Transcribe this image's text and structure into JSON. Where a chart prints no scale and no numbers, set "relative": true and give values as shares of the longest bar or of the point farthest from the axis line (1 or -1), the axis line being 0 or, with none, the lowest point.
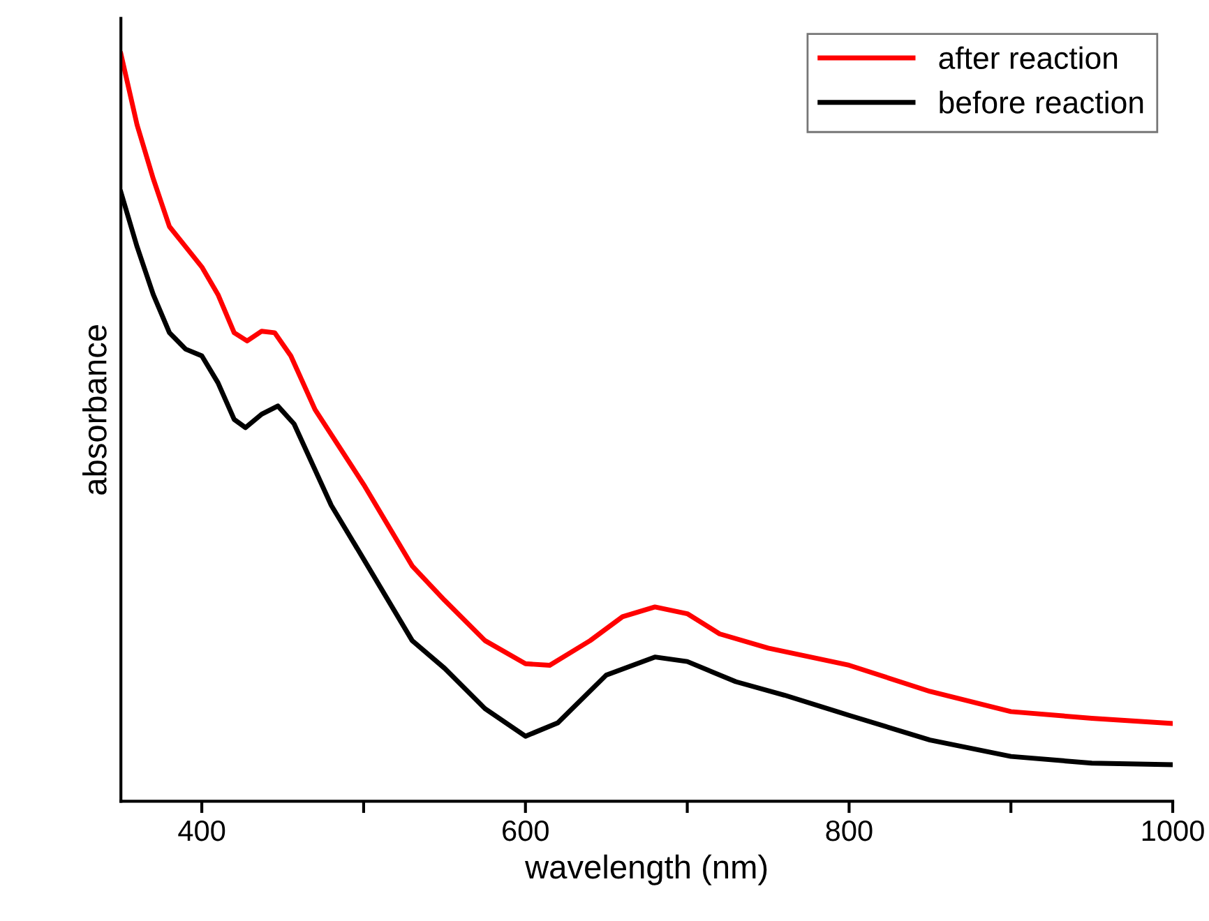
{
  "chart_data": {
    "type": "line",
    "xlabel": "wavelength (nm)",
    "ylabel": "absorbance",
    "relative": true,
    "legend": "top right",
    "grid": false,
    "marker": "none",
    "line_style": "solid",
    "xlim": [
      350,
      1000
    ],
    "xticks": [
      400,
      {
        "value": 500,
        "label": null
      },
      600,
      {
        "value": 700,
        "label": null
      },
      800,
      {
        "value": 900,
        "label": null
      },
      1000
    ],
    "series": [
      {
        "name": "after reaction",
        "color": "#ff0000",
        "x": [
          350,
          360,
          370,
          380,
          390,
          400,
          410,
          420,
          428,
          437,
          445,
          455,
          470,
          500,
          530,
          550,
          575,
          600,
          615,
          640,
          660,
          680,
          700,
          720,
          750,
          800,
          850,
          900,
          950,
          1000
        ],
        "values": [
          1.0,
          0.905,
          0.833,
          0.769,
          0.742,
          0.715,
          0.678,
          0.627,
          0.616,
          0.629,
          0.627,
          0.596,
          0.524,
          0.424,
          0.315,
          0.269,
          0.215,
          0.184,
          0.182,
          0.215,
          0.247,
          0.26,
          0.251,
          0.224,
          0.205,
          0.182,
          0.147,
          0.12,
          0.111,
          0.104
        ]
      },
      {
        "name": "before reaction",
        "color": "#000000",
        "x": [
          350,
          360,
          370,
          380,
          390,
          400,
          410,
          420,
          427,
          437,
          447,
          457,
          480,
          500,
          530,
          550,
          575,
          600,
          620,
          650,
          680,
          700,
          730,
          760,
          800,
          850,
          900,
          950,
          1000
        ],
        "values": [
          0.815,
          0.742,
          0.678,
          0.627,
          0.605,
          0.596,
          0.56,
          0.511,
          0.5,
          0.518,
          0.529,
          0.505,
          0.396,
          0.324,
          0.215,
          0.178,
          0.124,
          0.087,
          0.105,
          0.169,
          0.193,
          0.187,
          0.16,
          0.142,
          0.115,
          0.082,
          0.06,
          0.051,
          0.049
        ]
      }
    ]
  }
}
